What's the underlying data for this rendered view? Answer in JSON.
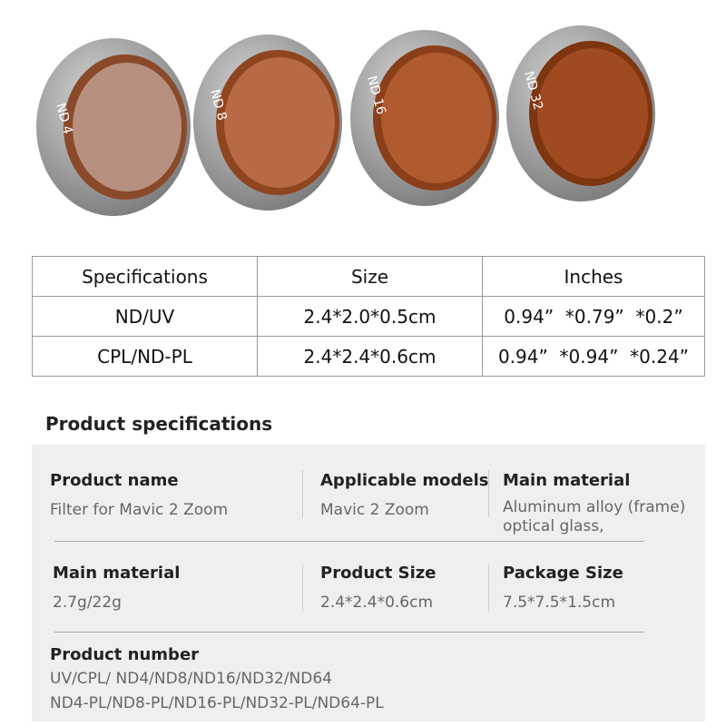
{
  "filters": [
    "ND 4",
    "ND 8",
    "ND 16",
    "ND 32"
  ],
  "table": {
    "header": [
      "Specifications",
      "Size",
      "Inches"
    ],
    "rows": [
      [
        "ND/UV",
        "2.4*2.0*0.5cm",
        "0.94”  *0.79”  *0.2”"
      ],
      [
        "CPL/ND-PL",
        "2.4*2.4*0.6cm",
        "0.94”  *0.94”  *0.24”"
      ]
    ]
  },
  "specs": {
    "title": "Product specifications",
    "fields": [
      {
        "label": "Product name",
        "value": "Filter for Mavic 2 Zoom"
      },
      {
        "label": "Applicable models",
        "value": "Mavic 2  Zoom"
      },
      {
        "label": "Main material",
        "value": "Aluminum alloy (frame) optical glass,"
      },
      {
        "label": "Main material",
        "value": "2.7g/22g"
      },
      {
        "label": "Product Size",
        "value": "2.4*2.4*0.6cm"
      },
      {
        "label": "Package Size",
        "value": "7.5*7.5*1.5cm"
      }
    ],
    "number": {
      "label": "Product number",
      "lines": [
        "UV/CPL/ ND4/ND8/ND16/ND32/ND64",
        "ND4-PL/ND8-PL/ND16-PL/ND32-PL/ND64-PL"
      ]
    }
  }
}
